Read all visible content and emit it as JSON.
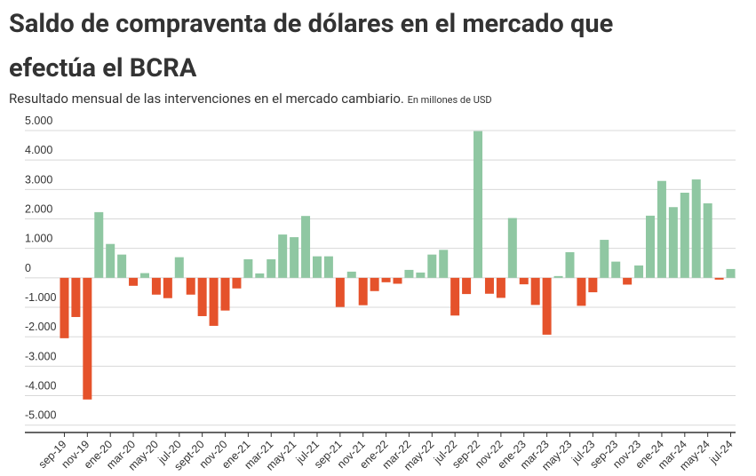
{
  "chart_data": {
    "type": "bar",
    "title": "Saldo de compraventa de dólares en el mercado que efectúa el BCRA",
    "subtitle": "Resultado  mensual de las intervenciones en el mercado cambiario.",
    "unit_note": "En millones de USD",
    "categories": [
      "sep-19",
      null,
      "nov-19",
      null,
      "ene-20",
      null,
      "mar-20",
      null,
      "may-20",
      null,
      "jul-20",
      null,
      "sept-20",
      null,
      "nov-20",
      null,
      "ene-21",
      null,
      "mar-21",
      null,
      "may-21",
      null,
      "jul-21",
      null,
      "sep-21",
      null,
      "nov-21",
      null,
      "ene-22",
      null,
      "mar-22",
      null,
      "may-22",
      null,
      "jul-22",
      null,
      "sep-22",
      null,
      "nov-22",
      null,
      "ene-23",
      null,
      "mar-23",
      null,
      "may-23",
      null,
      "jul-23",
      null,
      "sep-23",
      null,
      "nov-23",
      null,
      "ene-24",
      null,
      "mar-24",
      null,
      "may-24",
      null,
      "jul-24"
    ],
    "values": [
      -2050,
      -1330,
      -4130,
      2230,
      1150,
      790,
      -270,
      160,
      -570,
      -690,
      700,
      -570,
      -1300,
      -1630,
      -1110,
      -360,
      630,
      150,
      630,
      1470,
      1380,
      2100,
      730,
      730,
      -990,
      210,
      -930,
      -450,
      -150,
      -200,
      270,
      180,
      790,
      950,
      -1280,
      -550,
      4980,
      -540,
      -680,
      2030,
      -220,
      -920,
      -1930,
      60,
      870,
      -950,
      -490,
      1290,
      550,
      -230,
      420,
      2110,
      3290,
      2400,
      2890,
      3340,
      2530,
      -60,
      300
    ],
    "colors": {
      "positive": "#8fc7a2",
      "negative": "#e5522b"
    },
    "ylim": [
      -5250,
      5000
    ],
    "yticks": [
      {
        "value": 5000,
        "label": "5.000"
      },
      {
        "value": 4000,
        "label": "4.000"
      },
      {
        "value": 3000,
        "label": "3.000"
      },
      {
        "value": 2000,
        "label": "2.000"
      },
      {
        "value": 1000,
        "label": "1.000"
      },
      0,
      {
        "value": -1000,
        "label": "-1.000"
      },
      {
        "value": -2000,
        "label": "-2.000"
      },
      {
        "value": -3000,
        "label": "-3.000"
      },
      {
        "value": -4000,
        "label": "-4.000"
      },
      {
        "value": -5000,
        "label": "-5.000"
      }
    ],
    "grid": true
  }
}
